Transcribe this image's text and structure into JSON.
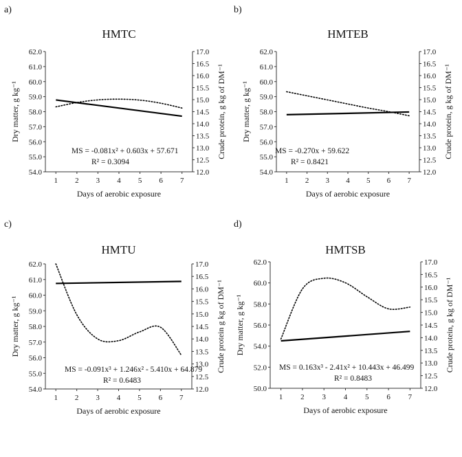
{
  "figure": {
    "panels": [
      {
        "letter": "a)",
        "title": "HMTC",
        "xlabel": "Days of aerobic exposure",
        "ylabel_left": "Dry matter, g kg⁻¹",
        "ylabel_right": "Crude protein, g kg of DM⁻¹",
        "equation": "MS = -0.081x² + 0.603x + 57.671",
        "r2": "R² = 0.3094"
      },
      {
        "letter": "b)",
        "title": "HMTEB",
        "xlabel": "Days of aerobic exposure",
        "ylabel_left": "Dry matter, g kg⁻¹",
        "ylabel_right": "Crude protein, g kg of DM⁻¹",
        "equation": "MS = -0.270x + 59.622",
        "r2": "R² = 0.8421"
      },
      {
        "letter": "c)",
        "title": "HMTU",
        "xlabel": "Days of aerobic exposure",
        "ylabel_left": "Dry matter, g kg⁻¹",
        "ylabel_right": "Crude protein g kg of DM⁻¹",
        "equation": "MS = -0.091x³ + 1.246x² - 5.410x + 64.879",
        "r2": "R² = 0.6483"
      },
      {
        "letter": "d)",
        "title": "HMTSB",
        "xlabel": "Days of aerobic exposure",
        "ylabel_left": "Dry matter, g kg⁻¹",
        "ylabel_right": "Crude protein, g kg of DM⁻¹",
        "equation": "MS = 0.163x³ - 2.41x² + 10.443x + 46.499",
        "r2": "R² = 0.8483"
      }
    ]
  },
  "chart_data": [
    {
      "type": "line",
      "title": "HMTC",
      "xlabel": "Days of aerobic exposure",
      "ylabel": "Dry matter, g kg⁻¹",
      "ylabel_right": "Crude protein, g kg of DM⁻¹",
      "x": [
        1,
        2,
        3,
        4,
        5,
        6,
        7
      ],
      "xlim": [
        0.5,
        7.5
      ],
      "ylim": [
        54.0,
        62.0
      ],
      "ylim_right": [
        12.0,
        17.0
      ],
      "yticks": [
        "54.0",
        "55.0",
        "56.0",
        "57.0",
        "58.0",
        "59.0",
        "60.0",
        "61.0",
        "62.0"
      ],
      "yticks_right": [
        "12.0",
        "12.5",
        "13.0",
        "13.5",
        "14.0",
        "14.5",
        "15.0",
        "15.5",
        "16.0",
        "16.5",
        "17.0"
      ],
      "grid": false,
      "series": [
        {
          "style": "solid",
          "axis": "left",
          "values": [
            58.78,
            58.6,
            58.42,
            58.24,
            58.06,
            57.88,
            57.7
          ]
        },
        {
          "style": "dotted",
          "axis": "right",
          "values": [
            14.7,
            14.88,
            14.99,
            15.02,
            14.98,
            14.85,
            14.65
          ]
        }
      ],
      "annotations": [
        "MS = -0.081x² + 0.603x + 57.671",
        "R² = 0.3094"
      ]
    },
    {
      "type": "line",
      "title": "HMTEB",
      "xlabel": "Days of aerobic exposure",
      "ylabel": "Dry matter, g kg⁻¹",
      "ylabel_right": "Crude protein, g kg of DM⁻¹",
      "x": [
        1,
        2,
        3,
        4,
        5,
        6,
        7
      ],
      "xlim": [
        0.5,
        7.5
      ],
      "ylim": [
        54.0,
        62.0
      ],
      "ylim_right": [
        12.0,
        17.0
      ],
      "yticks": [
        "54.0",
        "55.0",
        "56.0",
        "57.0",
        "58.0",
        "59.0",
        "60.0",
        "61.0",
        "62.0"
      ],
      "yticks_right": [
        "12.0",
        "12.5",
        "13.0",
        "13.5",
        "14.0",
        "14.5",
        "15.0",
        "15.5",
        "16.0",
        "16.5",
        "17.0"
      ],
      "grid": false,
      "series": [
        {
          "style": "solid",
          "axis": "left",
          "values": [
            57.8,
            57.83,
            57.86,
            57.89,
            57.92,
            57.95,
            57.98
          ]
        },
        {
          "style": "dotted",
          "axis": "right",
          "values": [
            15.33,
            15.16,
            14.99,
            14.82,
            14.65,
            14.5,
            14.33
          ]
        }
      ],
      "annotations": [
        "MS = -0.270x + 59.622",
        "R² = 0.8421"
      ]
    },
    {
      "type": "line",
      "title": "HMTU",
      "xlabel": "Days of aerobic exposure",
      "ylabel": "Dry matter, g kg⁻¹",
      "ylabel_right": "Crude protein g kg of DM⁻¹",
      "x": [
        1,
        2,
        3,
        4,
        5,
        6,
        7
      ],
      "xlim": [
        0.5,
        7.5
      ],
      "ylim": [
        54.0,
        62.0
      ],
      "ylim_right": [
        12.0,
        17.0
      ],
      "yticks": [
        "54.0",
        "55.0",
        "56.0",
        "57.0",
        "58.0",
        "59.0",
        "60.0",
        "61.0",
        "62.0"
      ],
      "yticks_right": [
        "12.0",
        "12.5",
        "13.0",
        "13.5",
        "14.0",
        "14.5",
        "15.0",
        "15.5",
        "16.0",
        "16.5",
        "17.0"
      ],
      "grid": false,
      "series": [
        {
          "style": "solid",
          "axis": "left",
          "values": [
            60.75,
            60.77,
            60.79,
            60.81,
            60.83,
            60.85,
            60.88
          ]
        },
        {
          "style": "dotted",
          "axis": "right",
          "values": [
            17.0,
            14.97,
            14.0,
            13.93,
            14.28,
            14.47,
            13.35
          ]
        }
      ],
      "annotations": [
        "MS = -0.091x³ + 1.246x² - 5.410x + 64.879",
        "R² = 0.6483"
      ]
    },
    {
      "type": "line",
      "title": "HMTSB",
      "xlabel": "Days of aerobic exposure",
      "ylabel": "Dry matter, g kg⁻¹",
      "ylabel_right": "Crude protein, g kg of DM⁻¹",
      "x": [
        1,
        2,
        3,
        4,
        5,
        6,
        7
      ],
      "xlim": [
        0.5,
        7.5
      ],
      "ylim": [
        50.0,
        62.0
      ],
      "ylim_right": [
        12.0,
        17.0
      ],
      "yticks": [
        "50.0",
        "52.0",
        "54.0",
        "56.0",
        "58.0",
        "60.0",
        "62.0"
      ],
      "yticks_right": [
        "12.0",
        "12.5",
        "13.0",
        "13.5",
        "14.0",
        "14.5",
        "15.0",
        "15.5",
        "16.0",
        "16.5",
        "17.0"
      ],
      "grid": false,
      "series": [
        {
          "style": "solid",
          "axis": "left",
          "values": [
            54.5,
            54.65,
            54.8,
            54.95,
            55.1,
            55.25,
            55.4
          ]
        },
        {
          "style": "dotted",
          "axis": "right",
          "values": [
            13.95,
            15.93,
            16.35,
            16.17,
            15.62,
            15.14,
            15.21
          ]
        }
      ],
      "annotations": [
        "MS = 0.163x³ - 2.41x² + 10.443x + 46.499",
        "R² = 0.8483"
      ]
    }
  ]
}
